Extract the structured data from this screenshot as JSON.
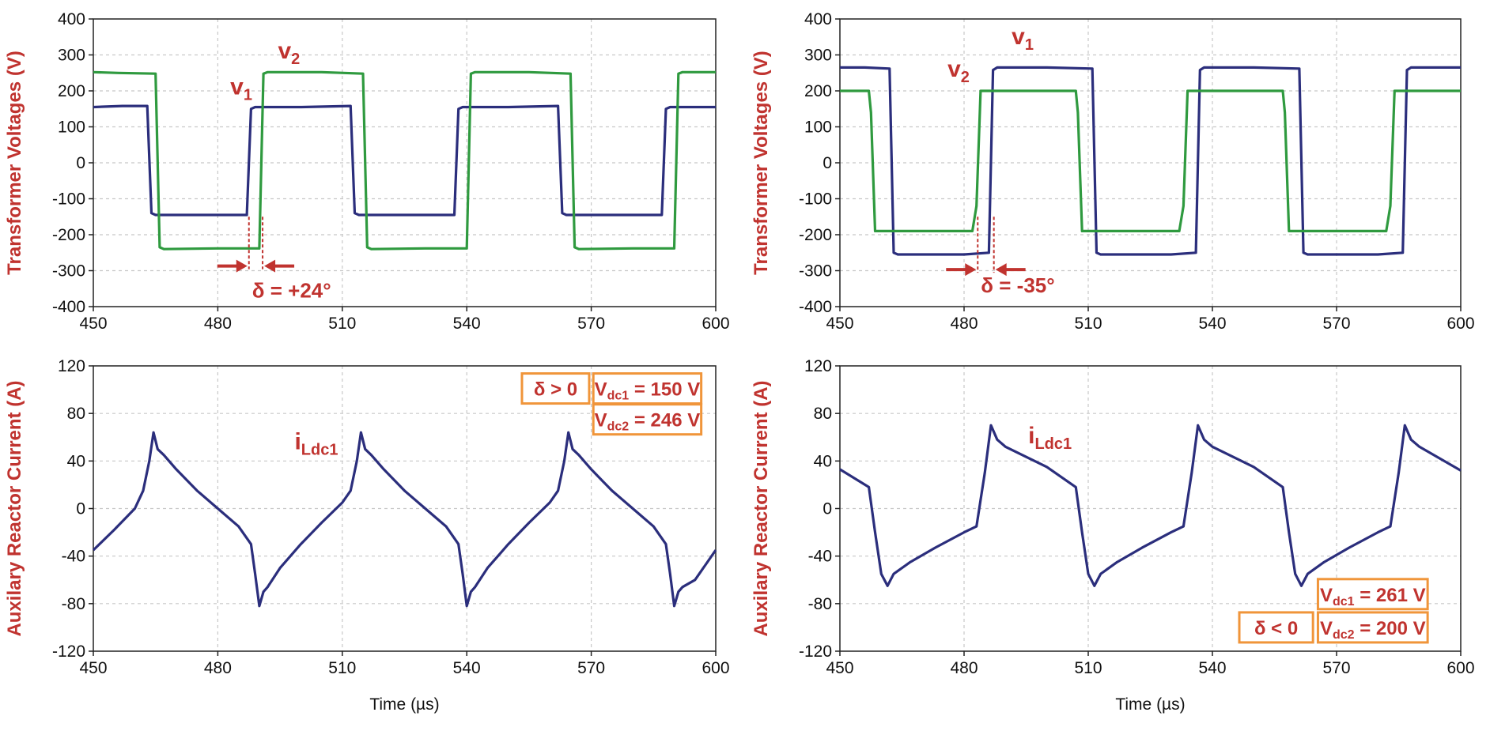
{
  "colors": {
    "v1": "#2b2e7c",
    "v2": "#2f9a3f",
    "annotation": "#c0332f",
    "box": "#f0953a"
  },
  "chart_data": [
    {
      "id": "tl",
      "type": "line",
      "ylabel": "Transformer Voltages (V)",
      "xlabel": "",
      "xlim": [
        450,
        600
      ],
      "ylim": [
        -400,
        400
      ],
      "xticks": [
        450,
        480,
        510,
        540,
        570,
        600
      ],
      "yticks": [
        -400,
        -300,
        -200,
        -100,
        0,
        100,
        200,
        300,
        400
      ],
      "grid": true,
      "series": [
        {
          "name": "v1",
          "color": "#2b2e7c",
          "x": [
            450,
            457,
            463,
            464,
            465,
            480,
            487,
            488,
            489,
            500,
            512,
            513,
            514,
            530,
            537,
            538,
            539,
            550,
            562,
            563,
            564,
            580,
            587,
            588,
            589,
            600
          ],
          "y": [
            155,
            158,
            158,
            -140,
            -145,
            -145,
            -145,
            150,
            155,
            155,
            158,
            -140,
            -145,
            -145,
            -145,
            150,
            155,
            155,
            158,
            -140,
            -145,
            -145,
            -145,
            150,
            155,
            155
          ]
        },
        {
          "name": "v2",
          "color": "#2f9a3f",
          "x": [
            450,
            456,
            465,
            466,
            467,
            480,
            490,
            491,
            492,
            505,
            515,
            516,
            517,
            530,
            540,
            541,
            542,
            555,
            565,
            566,
            567,
            580,
            590,
            591,
            592,
            600
          ],
          "y": [
            252,
            250,
            248,
            -235,
            -240,
            -238,
            -238,
            248,
            252,
            252,
            248,
            -235,
            -240,
            -238,
            -238,
            248,
            252,
            252,
            248,
            -235,
            -240,
            -238,
            -238,
            248,
            252,
            252
          ]
        }
      ],
      "labels": [
        {
          "text": "v",
          "sub": "2",
          "x": 494.5,
          "y": 290
        },
        {
          "text": "v",
          "sub": "1",
          "x": 483,
          "y": 190
        }
      ],
      "delta": {
        "text": "δ = +24°",
        "x1": 487.5,
        "x2": 490.8,
        "y": -287,
        "ylo": -375
      }
    },
    {
      "id": "tr",
      "type": "line",
      "ylabel": "Transformer Voltages (V)",
      "xlabel": "",
      "xlim": [
        450,
        600
      ],
      "ylim": [
        -400,
        400
      ],
      "xticks": [
        450,
        480,
        510,
        540,
        570,
        600
      ],
      "yticks": [
        -400,
        -300,
        -200,
        -100,
        0,
        100,
        200,
        300,
        400
      ],
      "grid": true,
      "series": [
        {
          "name": "v1",
          "color": "#2b2e7c",
          "x": [
            450,
            456,
            462,
            463,
            464,
            480,
            486,
            487,
            488,
            500,
            511,
            512,
            513,
            530,
            536,
            537,
            538,
            550,
            561,
            562,
            563,
            580,
            586,
            587,
            588,
            600
          ],
          "y": [
            265,
            265,
            262,
            -250,
            -255,
            -255,
            -250,
            258,
            265,
            265,
            262,
            -250,
            -255,
            -255,
            -250,
            258,
            265,
            265,
            262,
            -250,
            -255,
            -255,
            -250,
            258,
            265,
            265
          ]
        },
        {
          "name": "v2",
          "color": "#2f9a3f",
          "x": [
            450,
            457,
            457.5,
            458.5,
            465,
            482,
            483,
            484,
            496,
            507,
            507.5,
            508.5,
            515,
            532,
            533,
            534,
            546,
            557,
            557.5,
            558.5,
            565,
            582,
            583,
            584,
            600
          ],
          "y": [
            200,
            200,
            140,
            -190,
            -190,
            -190,
            -120,
            200,
            200,
            200,
            140,
            -190,
            -190,
            -190,
            -120,
            200,
            200,
            200,
            140,
            -190,
            -190,
            -190,
            -120,
            200,
            200
          ]
        }
      ],
      "labels": [
        {
          "text": "v",
          "sub": "1",
          "x": 491.5,
          "y": 330
        },
        {
          "text": "v",
          "sub": "2",
          "x": 476,
          "y": 240
        }
      ],
      "delta": {
        "text": "δ = -35°",
        "x1": 483.3,
        "x2": 487.2,
        "y": -297,
        "ylo": -360
      }
    },
    {
      "id": "bl",
      "type": "line",
      "ylabel": "Auxilary Reactor Current (A)",
      "xlabel": "Time (µs)",
      "xlim": [
        450,
        600
      ],
      "ylim": [
        -120,
        120
      ],
      "xticks": [
        450,
        480,
        510,
        540,
        570,
        600
      ],
      "yticks": [
        -120,
        -80,
        -40,
        0,
        40,
        80,
        120
      ],
      "grid": true,
      "series": [
        {
          "name": "iLdc1",
          "color": "#2b2e7c",
          "x": [
            450,
            455,
            460,
            462,
            463.5,
            464.5,
            465.5,
            467,
            470,
            475,
            480,
            485,
            488,
            489,
            490,
            491,
            492,
            495,
            500,
            505,
            510,
            512,
            513.5,
            514.5,
            515.5,
            517,
            520,
            525,
            530,
            535,
            538,
            539,
            540,
            541,
            542,
            545,
            550,
            555,
            560,
            562,
            563.5,
            564.5,
            565.5,
            567,
            570,
            575,
            580,
            585,
            588,
            589,
            590,
            591,
            592,
            595,
            600
          ],
          "y": [
            -35,
            -18,
            0,
            15,
            40,
            64,
            50,
            45,
            33,
            15,
            0,
            -15,
            -30,
            -55,
            -82,
            -70,
            -66,
            -50,
            -30,
            -12,
            5,
            15,
            40,
            64,
            50,
            45,
            33,
            15,
            0,
            -15,
            -30,
            -55,
            -82,
            -70,
            -66,
            -50,
            -30,
            -12,
            5,
            15,
            40,
            64,
            50,
            45,
            33,
            15,
            0,
            -15,
            -30,
            -55,
            -82,
            -70,
            -66,
            -60,
            -35
          ]
        }
      ],
      "labels": [
        {
          "text": "i",
          "sub": "Ldc1",
          "x": 498.5,
          "y": 50
        }
      ],
      "boxes": [
        {
          "text": "δ > 0",
          "x1": 553.3,
          "x2": 569.5,
          "yc": 101
        },
        {
          "text": "V",
          "sub": "dc1",
          "after": " = 150 V",
          "x1": 570.5,
          "x2": 596.5,
          "yc": 101
        },
        {
          "text": "V",
          "sub": "dc2",
          "after": " = 246 V",
          "x1": 570.5,
          "x2": 596.5,
          "yc": 75
        }
      ]
    },
    {
      "id": "br",
      "type": "line",
      "ylabel": "Auxilary Reactor Current (A)",
      "xlabel": "Time (µs)",
      "xlim": [
        450,
        600
      ],
      "ylim": [
        -120,
        120
      ],
      "xticks": [
        450,
        480,
        510,
        540,
        570,
        600
      ],
      "yticks": [
        -120,
        -80,
        -40,
        0,
        40,
        80,
        120
      ],
      "grid": true,
      "series": [
        {
          "name": "iLdc1",
          "color": "#2b2e7c",
          "x": [
            450,
            457,
            458.5,
            460,
            461.5,
            463,
            467,
            473,
            480,
            483,
            485,
            486.5,
            488,
            490,
            500,
            507,
            508.5,
            510,
            511.5,
            513,
            517,
            523,
            530,
            533,
            535,
            536.5,
            538,
            540,
            550,
            557,
            558.5,
            560,
            561.5,
            563,
            567,
            573,
            580,
            583,
            585,
            586.5,
            588,
            590,
            600
          ],
          "y": [
            33,
            18,
            -20,
            -55,
            -65,
            -55,
            -45,
            -33,
            -20,
            -15,
            30,
            70,
            58,
            52,
            35,
            18,
            -20,
            -55,
            -65,
            -55,
            -45,
            -33,
            -20,
            -15,
            30,
            70,
            58,
            52,
            35,
            18,
            -20,
            -55,
            -65,
            -55,
            -45,
            -33,
            -20,
            -15,
            30,
            70,
            58,
            52,
            32
          ]
        }
      ],
      "labels": [
        {
          "text": "i",
          "sub": "Ldc1",
          "x": 495.5,
          "y": 55
        }
      ],
      "boxes": [
        {
          "text": "V",
          "sub": "dc1",
          "after": " = 261 V",
          "x1": 565.5,
          "x2": 592,
          "yc": -72
        },
        {
          "text": "δ < 0",
          "x1": 546.5,
          "x2": 564.3,
          "yc": -100
        },
        {
          "text": "V",
          "sub": "dc2",
          "after": " = 200 V",
          "x1": 565.5,
          "x2": 592,
          "yc": -100
        }
      ]
    }
  ]
}
